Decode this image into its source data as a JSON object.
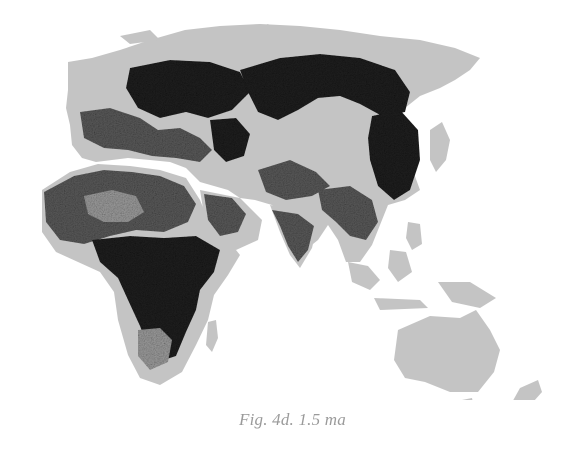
{
  "figure": {
    "caption": "Fig. 4d. 1.5 ma"
  },
  "colors": {
    "background": "#ffffff",
    "land": "#c4c4c4",
    "occupation_dark": "#1f1f1f",
    "occupation_mid": "#5a5a5a",
    "occupation_light": "#9c9c9c",
    "caption_text": "#9a9a9a"
  }
}
